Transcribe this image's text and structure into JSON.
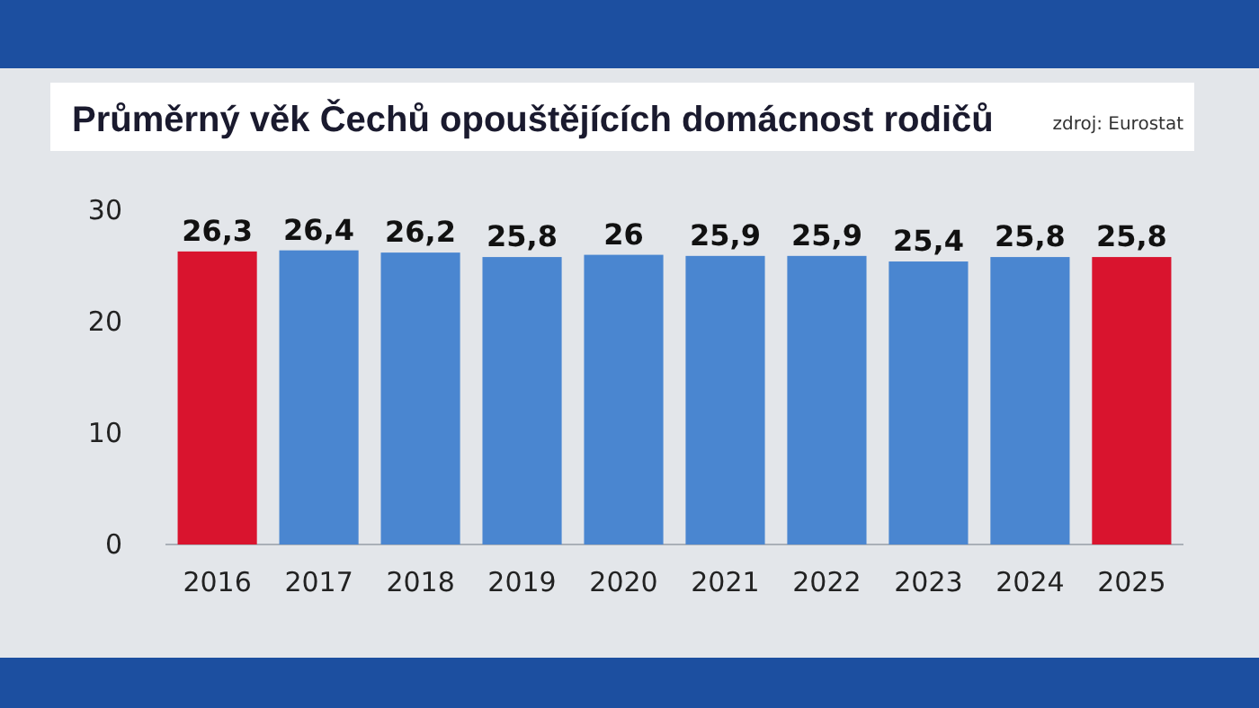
{
  "chart_data": {
    "type": "bar",
    "title": "Průměrný věk Čechů opouštějících domácnost rodičů",
    "annotations": [
      "zdroj: Eurostat"
    ],
    "categories": [
      "2016",
      "2017",
      "2018",
      "2019",
      "2020",
      "2021",
      "2022",
      "2023",
      "2024",
      "2025"
    ],
    "values": [
      26.3,
      26.4,
      26.2,
      25.8,
      26,
      25.9,
      25.9,
      25.4,
      25.8,
      25.8
    ],
    "colors": [
      "#d9142e",
      "#4a86d0",
      "#4a86d0",
      "#4a86d0",
      "#4a86d0",
      "#4a86d0",
      "#4a86d0",
      "#4a86d0",
      "#4a86d0",
      "#d9142e"
    ],
    "value_labels": [
      "26,3",
      "26,4",
      "26,2",
      "25,8",
      "26",
      "25,9",
      "25,9",
      "25,4",
      "25,8",
      "25,8"
    ],
    "ylim": [
      0,
      30
    ],
    "yticks": [
      0,
      10,
      20,
      30
    ],
    "grid": false
  }
}
